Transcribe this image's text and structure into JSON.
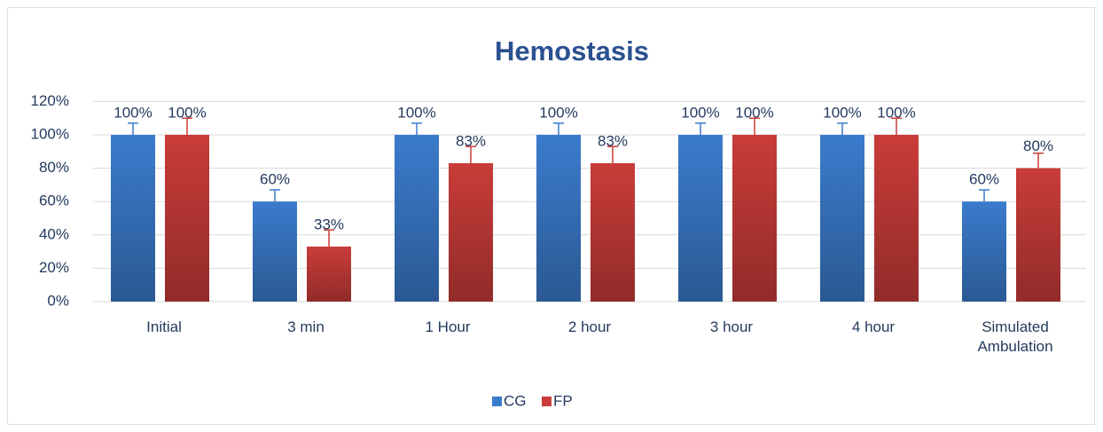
{
  "chart_data": {
    "type": "bar",
    "title": "Hemostasis",
    "categories": [
      "Initial",
      "3 min",
      "1 Hour",
      "2 hour",
      "3 hour",
      "4 hour",
      "Simulated Ambulation"
    ],
    "series": [
      {
        "name": "CG",
        "color": "#3b7bcc",
        "values": [
          100,
          60,
          100,
          100,
          100,
          100,
          60
        ],
        "value_labels": [
          "100%",
          "60%",
          "100%",
          "100%",
          "100%",
          "100%",
          "60%"
        ],
        "errors": [
          7,
          7,
          7,
          7,
          7,
          7,
          7
        ]
      },
      {
        "name": "FP",
        "color": "#c93c39",
        "values": [
          100,
          33,
          83,
          83,
          100,
          100,
          80
        ],
        "value_labels": [
          "100%",
          "33%",
          "83%",
          "83%",
          "100%",
          "100%",
          "80%"
        ],
        "errors": [
          10,
          10,
          10,
          10,
          10,
          10,
          9
        ]
      }
    ],
    "ylim": [
      0,
      120
    ],
    "yticks": [
      {
        "value": 0,
        "label": "0%"
      },
      {
        "value": 20,
        "label": "20%"
      },
      {
        "value": 40,
        "label": "40%"
      },
      {
        "value": 60,
        "label": "60%"
      },
      {
        "value": 80,
        "label": "80%"
      },
      {
        "value": 100,
        "label": "100%"
      },
      {
        "value": 120,
        "label": "120%"
      }
    ],
    "grid": true,
    "legend": "bottom"
  }
}
